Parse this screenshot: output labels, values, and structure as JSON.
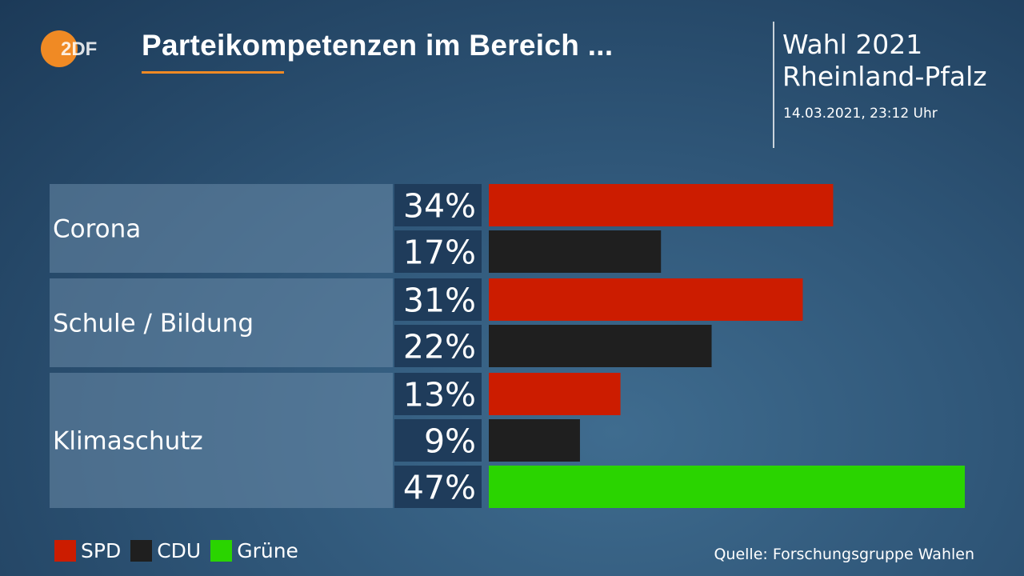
{
  "header": {
    "logo_text": "ZDF",
    "title": "Parteikompetenzen im Bereich ...",
    "election": "Wahl 2021",
    "region": "Rheinland-Pfalz",
    "timestamp": "14.03.2021, 23:12 Uhr"
  },
  "colors": {
    "accent": "#f08a24",
    "SPD": "#cc1c00",
    "CDU": "#1f1f1f",
    "Grüne": "#2ad400"
  },
  "chart_data": {
    "type": "bar",
    "orientation": "horizontal",
    "title": "Parteikompetenzen im Bereich ...",
    "unit": "%",
    "groups": [
      {
        "category": "Corona",
        "bars": [
          {
            "party": "SPD",
            "value": 34
          },
          {
            "party": "CDU",
            "value": 17
          }
        ]
      },
      {
        "category": "Schule / Bildung",
        "bars": [
          {
            "party": "SPD",
            "value": 31
          },
          {
            "party": "CDU",
            "value": 22
          }
        ]
      },
      {
        "category": "Klimaschutz",
        "bars": [
          {
            "party": "SPD",
            "value": 13
          },
          {
            "party": "CDU",
            "value": 9
          },
          {
            "party": "Grüne",
            "value": 47
          }
        ]
      }
    ],
    "legend": [
      {
        "name": "SPD",
        "color": "#cc1c00"
      },
      {
        "name": "CDU",
        "color": "#1f1f1f"
      },
      {
        "name": "Grüne",
        "color": "#2ad400"
      }
    ],
    "legend_position": "bottom-left",
    "grid": false
  },
  "footer": {
    "source": "Quelle: Forschungsgruppe Wahlen"
  }
}
